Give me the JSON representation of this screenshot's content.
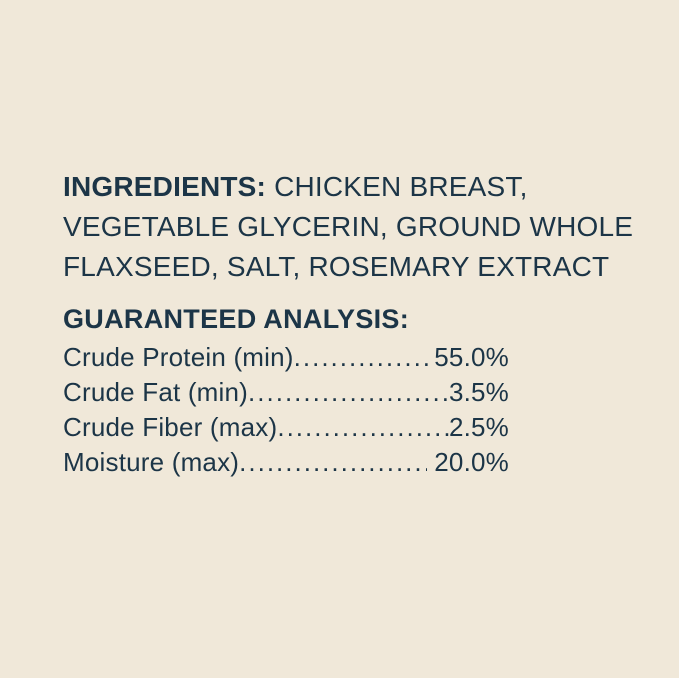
{
  "label": {
    "background_color": "#f0e8d9",
    "text_color": "#1c3547",
    "ingredients": {
      "heading": "INGREDIENTS:",
      "text": "CHICKEN BREAST, VEGETABLE GLYCERIN, GROUND WHOLE FLAXSEED, SALT, ROSEMARY EXTRACT"
    },
    "guaranteed_analysis": {
      "heading": "GUARANTEED ANALYSIS:",
      "leader_dots": "................................................................................",
      "rows": [
        {
          "label": "Crude Protein (min)",
          "value": "55.0%"
        },
        {
          "label": "Crude Fat (min)",
          "value": "3.5%"
        },
        {
          "label": "Crude Fiber (max)",
          "value": "2.5%"
        },
        {
          "label": "Moisture (max)",
          "value": " 20.0%"
        }
      ]
    }
  }
}
